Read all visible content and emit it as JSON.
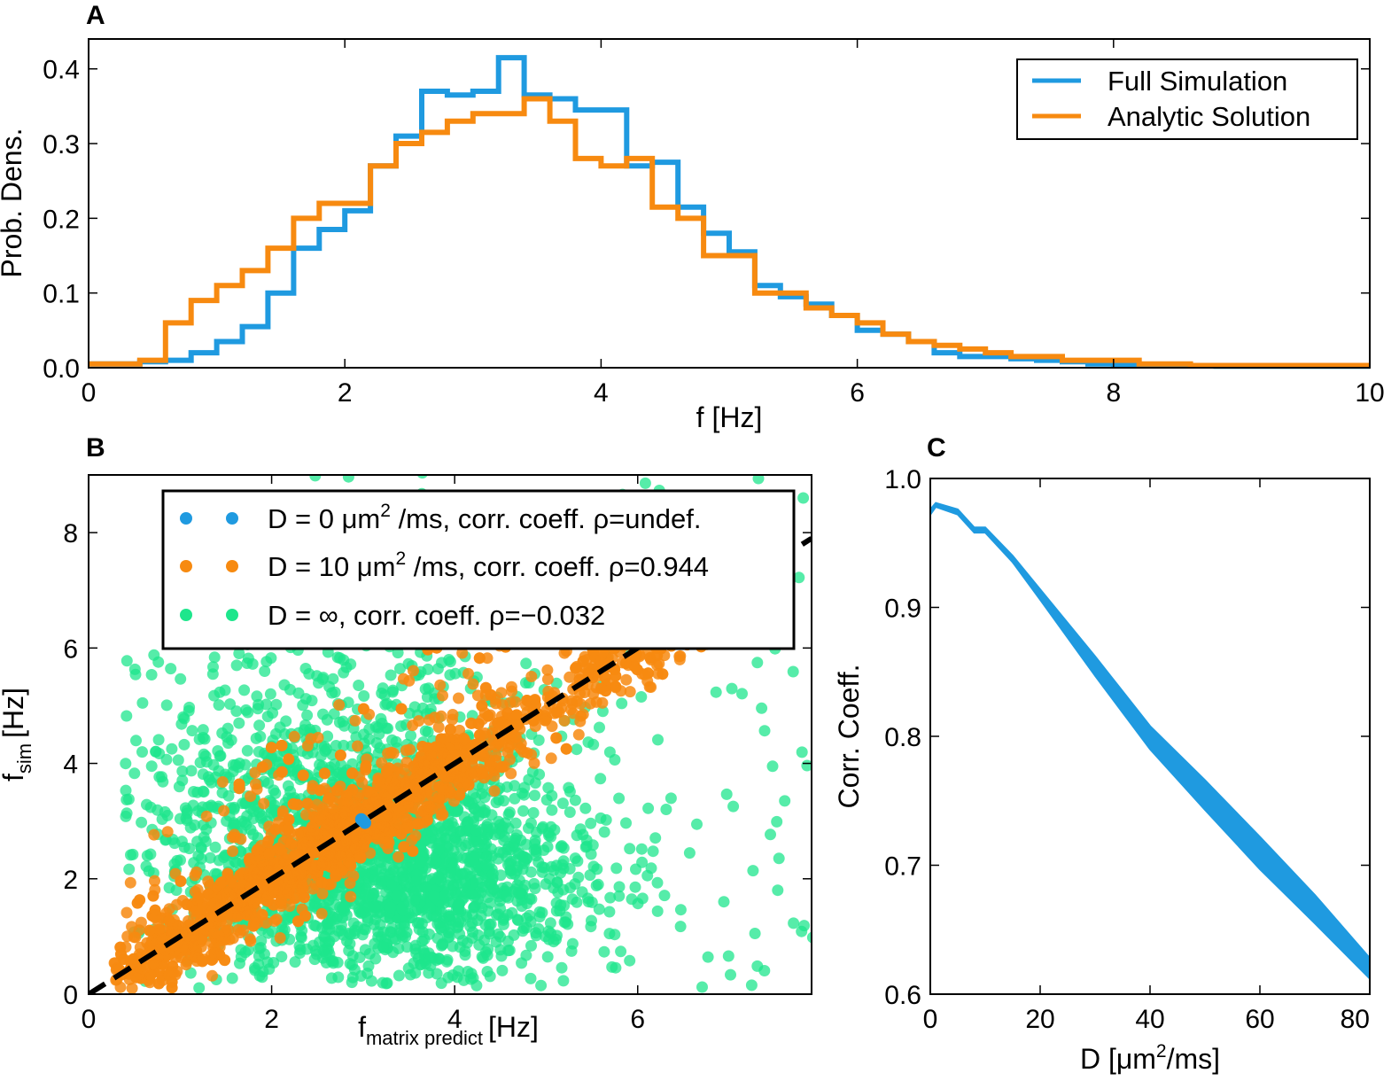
{
  "chart_data": [
    {
      "panel": "A",
      "type": "line",
      "style": "step-histogram",
      "xlabel": "f [Hz]",
      "ylabel": "Prob. Dens.",
      "xlim": [
        0,
        10
      ],
      "ylim": [
        0,
        0.44
      ],
      "xticks": [
        0,
        2,
        4,
        6,
        8,
        10
      ],
      "yticks": [
        0.0,
        0.1,
        0.2,
        0.3,
        0.4
      ],
      "grid": false,
      "legend_position": "top-right",
      "bin_width": 0.2,
      "bin_start": 0.0,
      "series": [
        {
          "name": "Full Simulation",
          "color": "#1f9ae0",
          "values": [
            0.005,
            0.005,
            0.008,
            0.01,
            0.02,
            0.035,
            0.055,
            0.1,
            0.16,
            0.185,
            0.21,
            0.27,
            0.31,
            0.37,
            0.365,
            0.37,
            0.415,
            0.365,
            0.36,
            0.345,
            0.345,
            0.27,
            0.275,
            0.215,
            0.18,
            0.155,
            0.11,
            0.095,
            0.085,
            0.07,
            0.05,
            0.045,
            0.035,
            0.02,
            0.015,
            0.015,
            0.012,
            0.01,
            0.008,
            0.005,
            0.004,
            0.003,
            0.003,
            0.003,
            0.002,
            0.002,
            0.002,
            0.002,
            0.002,
            0.002
          ]
        },
        {
          "name": "Analytic Solution",
          "color": "#f78a10",
          "values": [
            0.005,
            0.005,
            0.01,
            0.06,
            0.09,
            0.11,
            0.13,
            0.16,
            0.2,
            0.22,
            0.22,
            0.27,
            0.3,
            0.315,
            0.33,
            0.34,
            0.34,
            0.36,
            0.33,
            0.28,
            0.27,
            0.28,
            0.215,
            0.2,
            0.15,
            0.15,
            0.1,
            0.1,
            0.08,
            0.07,
            0.06,
            0.045,
            0.035,
            0.03,
            0.025,
            0.02,
            0.015,
            0.015,
            0.01,
            0.01,
            0.01,
            0.005,
            0.005,
            0.003,
            0.003,
            0.003,
            0.003,
            0.003,
            0.003,
            0.003
          ]
        }
      ]
    },
    {
      "panel": "B",
      "type": "scatter",
      "xlabel_main": "f",
      "xlabel_sub": "matrix predict",
      "xlabel_unit": "[Hz]",
      "ylabel_main": "f",
      "ylabel_sub": "sim",
      "ylabel_unit": "[Hz]",
      "xlim": [
        0,
        7.9
      ],
      "ylim": [
        0,
        9
      ],
      "xticks": [
        0,
        2,
        4,
        6
      ],
      "yticks": [
        0,
        2,
        4,
        6,
        8
      ],
      "grid": false,
      "legend_position": "top",
      "identity_line": {
        "style": "dashed",
        "color": "#000000"
      },
      "series": [
        {
          "name_prefix": "D = 0 μm",
          "name_sup": "2",
          "name_suffix": " /ms, corr. coeff. ρ=undef.",
          "color": "#1f9ae0",
          "points": [
            [
              3.0,
              3.0
            ],
            [
              3.02,
              2.97
            ],
            [
              2.98,
              3.03
            ]
          ]
        },
        {
          "name_prefix": "D = 10 μm",
          "name_sup": "2",
          "name_suffix": " /ms, corr. coeff. ρ=0.944",
          "color": "#f78a10",
          "distribution": "points along identity line, x from about 0.3 to 6.5 Hz, spread about 0.4 Hz",
          "correlation": 0.944
        },
        {
          "name_prefix": "D = ∞, corr. coeff. ρ=−0.032",
          "name_sup": "",
          "name_suffix": "",
          "color": "#1ee68c",
          "distribution": "broad cloud, x roughly 0.5 to 8 Hz, y roughly 0 to 9 Hz, centered near (3.3, 2.3)",
          "correlation": -0.032
        }
      ]
    },
    {
      "panel": "C",
      "type": "area",
      "xlabel_prefix": "D [μm",
      "xlabel_sup": "2",
      "xlabel_suffix": "/ms]",
      "ylabel": "Corr. Coeff.",
      "xlim": [
        0,
        80
      ],
      "ylim": [
        0.6,
        1.0
      ],
      "xticks": [
        0,
        20,
        40,
        60,
        80
      ],
      "yticks": [
        0.6,
        0.7,
        0.8,
        0.9,
        1.0
      ],
      "grid": false,
      "color": "#1f9ae0",
      "x": [
        0,
        1,
        5,
        8,
        10,
        15,
        20,
        30,
        40,
        50,
        60,
        70,
        80
      ],
      "upper": [
        0.976,
        0.981,
        0.976,
        0.962,
        0.962,
        0.94,
        0.914,
        0.862,
        0.808,
        0.766,
        0.722,
        0.677,
        0.628
      ],
      "lower": [
        0.972,
        0.978,
        0.972,
        0.958,
        0.958,
        0.935,
        0.906,
        0.847,
        0.79,
        0.743,
        0.697,
        0.655,
        0.612
      ]
    }
  ],
  "colors": {
    "blue": "#1f9ae0",
    "orange": "#f78a10",
    "green": "#1ee68c",
    "black": "#000000"
  }
}
